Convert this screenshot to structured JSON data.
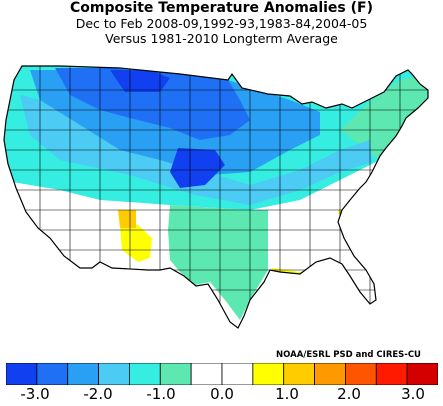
{
  "title": "Composite Temperature Anomalies (F)",
  "subtitle_1": "Dec to Feb   2008-09,1992-93,1983-84,2004-05",
  "subtitle_2": "Versus 1981-2010 Longterm Average",
  "credit": "NOAA/ESRL PSD and CIRES-CU",
  "colorbar": {
    "colors": [
      "#1040f0",
      "#1f70f5",
      "#2aa0f5",
      "#4ccbf5",
      "#36ede1",
      "#5ce8b0",
      "#ffffff",
      "#ffffff",
      "#ffff00",
      "#ffcc00",
      "#ff9900",
      "#ff5500",
      "#ff1a00",
      "#d40000"
    ],
    "tick_labels": [
      "-3.0",
      "-2.0",
      "-1.0",
      "0.0",
      "1.0",
      "2.0",
      "3.0"
    ]
  },
  "map_colors": {
    "lt_neg3": "#1040f0",
    "neg3_neg2_5": "#1f70f5",
    "neg2_5_neg2": "#2aa0f5",
    "neg2_neg1_5": "#4ccbf5",
    "neg1_5_neg1": "#36ede1",
    "neg1_neg0_5": "#5ce8b0",
    "neutral": "#ffffff",
    "pos0_5_1": "#ffff00",
    "pos1_1_5": "#ffcc00"
  }
}
